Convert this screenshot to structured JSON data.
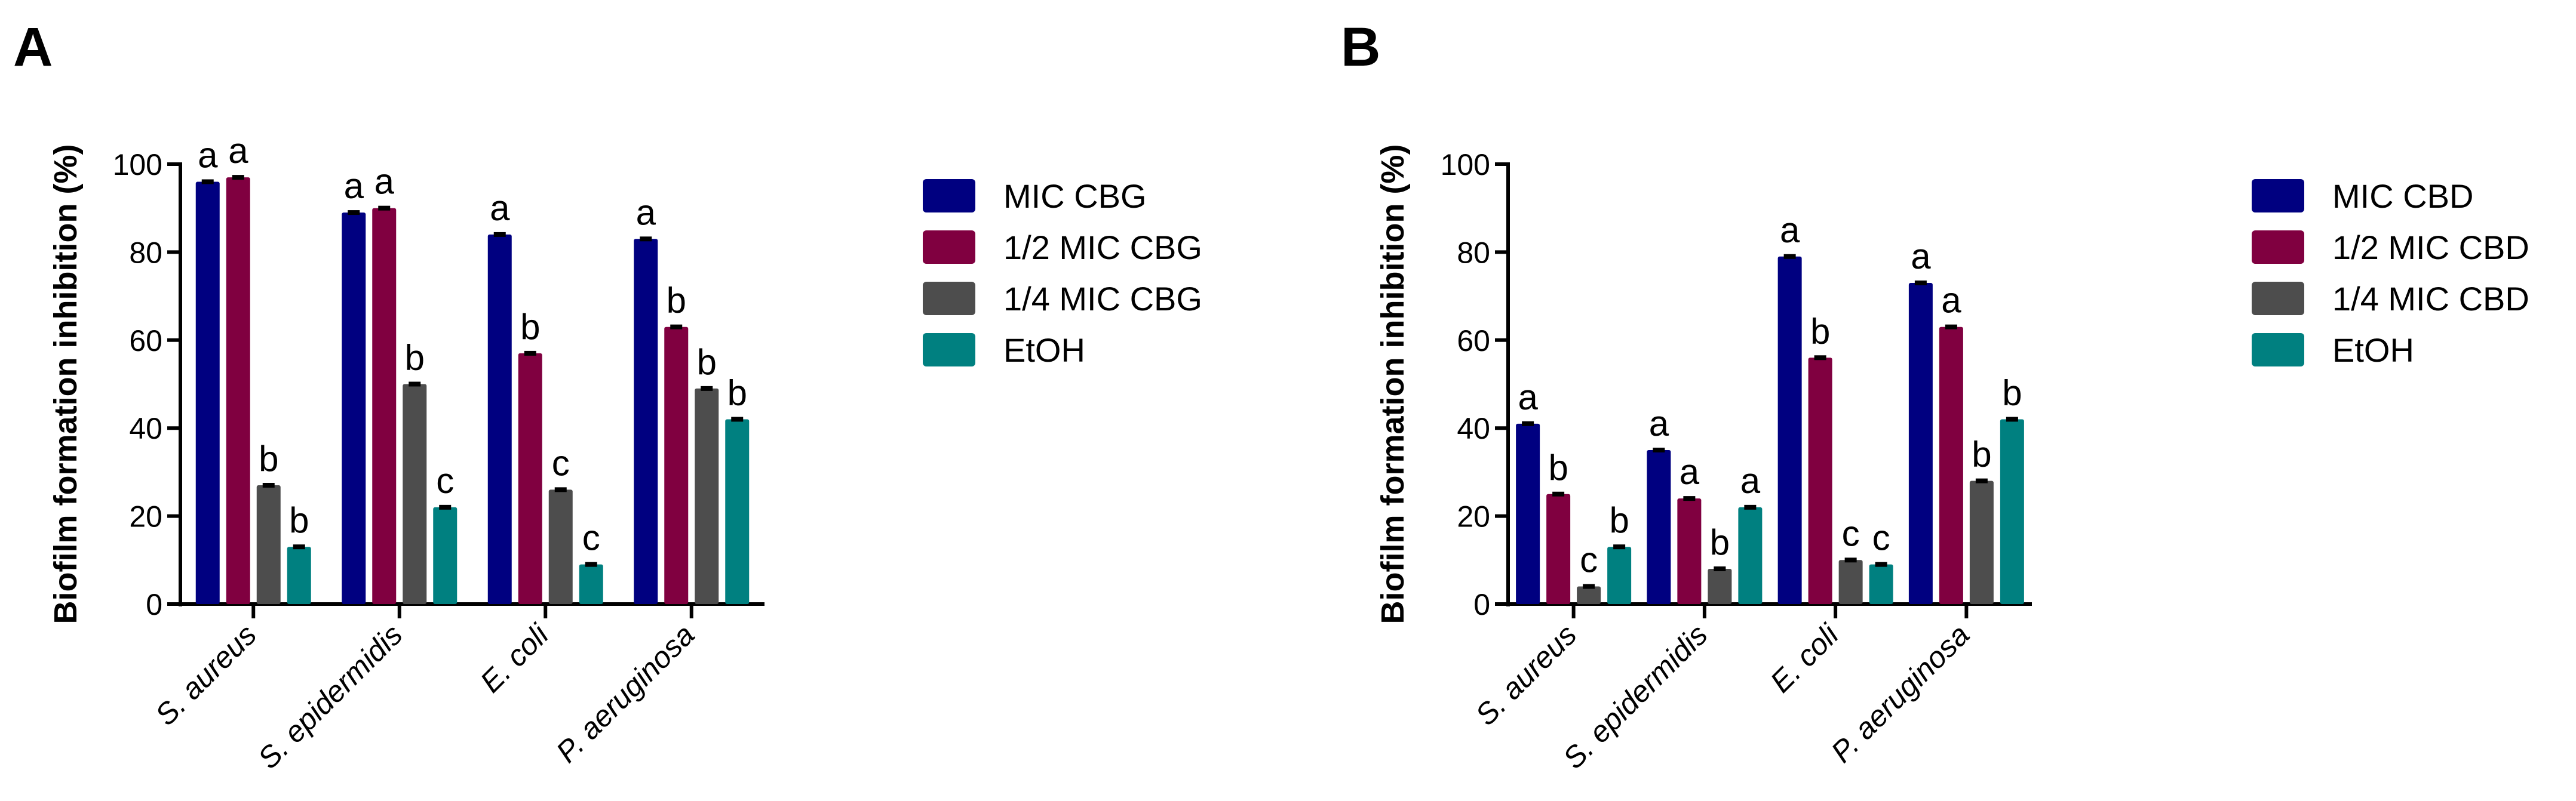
{
  "chart_data": [
    {
      "panel": "A",
      "type": "bar",
      "ylabel": "Biofilm formation inhibition (%)",
      "ylim": [
        0,
        100
      ],
      "yticks": [
        0,
        20,
        40,
        60,
        80,
        100
      ],
      "categories": [
        "S. aureus",
        "S. epidermidis",
        "E. coli",
        "P. aeruginosa"
      ],
      "legend_position": "right",
      "grid": false,
      "series": [
        {
          "name": "MIC CBG",
          "color": "#000080",
          "values": [
            96,
            89,
            84,
            83
          ],
          "letters": [
            "a",
            "a",
            "a",
            "a"
          ]
        },
        {
          "name": "1/2 MIC CBG",
          "color": "#800040",
          "values": [
            97,
            90,
            57,
            63
          ],
          "letters": [
            "a",
            "a",
            "b",
            "b"
          ]
        },
        {
          "name": "1/4 MIC CBG",
          "color": "#4d4d4d",
          "values": [
            27,
            50,
            26,
            49
          ],
          "letters": [
            "b",
            "b",
            "c",
            "b"
          ]
        },
        {
          "name": "EtOH",
          "color": "#008080",
          "values": [
            13,
            22,
            9,
            42
          ],
          "letters": [
            "b",
            "c",
            "c",
            "b"
          ]
        }
      ]
    },
    {
      "panel": "B",
      "type": "bar",
      "ylabel": "Biofilm formation inhibition (%)",
      "ylim": [
        0,
        100
      ],
      "yticks": [
        0,
        20,
        40,
        60,
        80,
        100
      ],
      "categories": [
        "S. aureus",
        "S. epidermidis",
        "E. coli",
        "P. aeruginosa"
      ],
      "legend_position": "right",
      "grid": false,
      "series": [
        {
          "name": "MIC CBD",
          "color": "#000080",
          "values": [
            41,
            35,
            79,
            73
          ],
          "letters": [
            "a",
            "a",
            "a",
            "a"
          ]
        },
        {
          "name": "1/2 MIC CBD",
          "color": "#800040",
          "values": [
            25,
            24,
            56,
            63
          ],
          "letters": [
            "b",
            "a",
            "b",
            "a"
          ]
        },
        {
          "name": "1/4 MIC CBD",
          "color": "#4d4d4d",
          "values": [
            4,
            8,
            10,
            28
          ],
          "letters": [
            "c",
            "b",
            "c",
            "b"
          ]
        },
        {
          "name": "EtOH",
          "color": "#008080",
          "values": [
            13,
            22,
            9,
            42
          ],
          "letters": [
            "b",
            "a",
            "c",
            "b"
          ]
        }
      ]
    }
  ]
}
